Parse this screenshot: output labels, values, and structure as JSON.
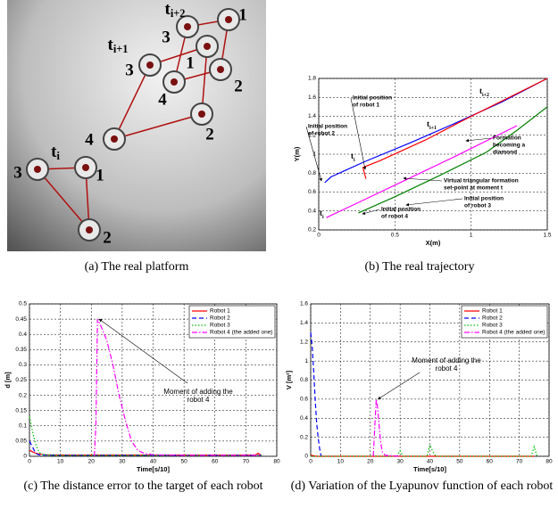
{
  "photo": {
    "labels": [
      {
        "text": "t",
        "sub": "i"
      },
      "1",
      "3",
      "2",
      "4",
      "2",
      "3",
      {
        "text": "t",
        "sub": "i+1"
      },
      "4",
      "1",
      "3",
      {
        "text": "t",
        "sub": "i+2"
      },
      "1",
      "2"
    ]
  },
  "captions": [
    "(a) The real platform",
    "(b) The real trajectory",
    "(c) The distance error to the target of each robot",
    "(d) Variation of the Lyapunov function of each robot"
  ],
  "chart_data": [
    {
      "type": "line",
      "xlabel": "X(m)",
      "ylabel": "Y(m)",
      "xlim": [
        0,
        1.5
      ],
      "ylim": [
        0.2,
        1.8
      ],
      "xticks": [
        0,
        0.5,
        1,
        1.5
      ],
      "yticks": [
        0.2,
        0.4,
        0.6,
        0.8,
        1,
        1.2,
        1.4,
        1.6,
        1.8
      ],
      "grid": true,
      "series": [
        {
          "color": "#0000ff",
          "linestyle": "solid",
          "x": [
            0.04,
            0.08,
            0.3,
            0.6,
            0.9,
            1.2,
            1.5
          ],
          "values": [
            0.7,
            0.76,
            0.92,
            1.12,
            1.33,
            1.55,
            1.8
          ]
        },
        {
          "color": "#ff0000",
          "linestyle": "solid",
          "x": [
            0.31,
            0.29,
            0.4,
            0.7,
            1.0,
            1.25,
            1.5
          ],
          "values": [
            0.74,
            0.86,
            0.93,
            1.15,
            1.4,
            1.6,
            1.8
          ]
        },
        {
          "color": "#ff00ff",
          "linestyle": "solid",
          "x": [
            0.05,
            0.3,
            0.6,
            0.9,
            1.2,
            1.3
          ],
          "values": [
            0.33,
            0.52,
            0.75,
            0.98,
            1.22,
            1.3
          ]
        },
        {
          "color": "#008000",
          "linestyle": "solid",
          "x": [
            0.26,
            0.5,
            0.8,
            1.1,
            1.3,
            1.5
          ],
          "values": [
            0.38,
            0.55,
            0.78,
            1.02,
            1.25,
            1.5
          ]
        }
      ],
      "annotations": [
        [
          "Initial position",
          "of robot 1"
        ],
        [
          "Initial position",
          "of robot 2"
        ],
        [
          "Formation",
          "becoming a",
          "diamond"
        ],
        [
          "Virtual triangular formation",
          "set-point at moment t"
        ],
        [
          "Initial position",
          "of robot 3"
        ],
        [
          "Initial position",
          "of robot 4"
        ]
      ],
      "time_labels": [
        {
          "text": "t",
          "sub": "i"
        },
        {
          "text": "t",
          "sub": "i"
        },
        {
          "text": "t",
          "sub": "i+1"
        },
        {
          "text": "t",
          "sub": "i+2"
        }
      ]
    },
    {
      "type": "line",
      "xlabel": "Time[s/10]",
      "ylabel": "d [m]",
      "xlim": [
        0,
        80
      ],
      "ylim": [
        0,
        0.5
      ],
      "xticks": [
        0,
        10,
        20,
        30,
        40,
        50,
        60,
        70,
        80
      ],
      "yticks": [
        0,
        0.05,
        0.1,
        0.15,
        0.2,
        0.25,
        0.3,
        0.35,
        0.4,
        0.45,
        0.5
      ],
      "grid": true,
      "legend": "upper right",
      "series": [
        {
          "name": "Robot 1",
          "color": "#ff0000",
          "linestyle": "solid",
          "x": [
            0,
            1,
            2,
            3,
            5,
            10,
            20,
            40,
            60,
            73,
            74,
            75
          ],
          "values": [
            0.02,
            0.015,
            0.01,
            0.008,
            0.005,
            0.004,
            0.004,
            0.004,
            0.004,
            0.004,
            0.01,
            0.003
          ]
        },
        {
          "name": "Robot 2",
          "color": "#0000ff",
          "linestyle": "dashed",
          "x": [
            0,
            1,
            2,
            3,
            5,
            10,
            40,
            75
          ],
          "values": [
            0.05,
            0.03,
            0.01,
            0.005,
            0.004,
            0.003,
            0.003,
            0.003
          ]
        },
        {
          "name": "Robot 3",
          "color": "#00c000",
          "linestyle": "dotted",
          "x": [
            0,
            1,
            2,
            3,
            4,
            6,
            10,
            40,
            75
          ],
          "values": [
            0.13,
            0.08,
            0.04,
            0.015,
            0.006,
            0.004,
            0.003,
            0.003,
            0.003
          ]
        },
        {
          "name": "Robot 4 (the added one)",
          "color": "#ff00ff",
          "linestyle": "dashdot",
          "x": [
            21,
            21.5,
            22,
            23,
            25,
            27,
            29,
            31,
            33,
            35,
            37,
            40,
            50,
            75
          ],
          "values": [
            0,
            0.1,
            0.45,
            0.43,
            0.38,
            0.3,
            0.2,
            0.12,
            0.05,
            0.02,
            0.01,
            0.005,
            0.003,
            0.003
          ]
        }
      ],
      "annotation": [
        "Moment of adding the",
        "robot 4"
      ]
    },
    {
      "type": "line",
      "xlabel": "Time[s/10]",
      "ylabel": "V [m²]",
      "xlim": [
        0,
        80
      ],
      "ylim": [
        0,
        1.6
      ],
      "xticks": [
        0,
        10,
        20,
        30,
        40,
        50,
        60,
        70,
        80
      ],
      "yticks": [
        0,
        0.2,
        0.4,
        0.6,
        0.8,
        1,
        1.2,
        1.4,
        1.6
      ],
      "grid": true,
      "legend": "upper right",
      "series": [
        {
          "name": "Robot 1",
          "color": "#ff0000",
          "linestyle": "solid",
          "x": [
            0,
            2,
            75
          ],
          "values": [
            0.01,
            0,
            0
          ]
        },
        {
          "name": "Robot 2",
          "color": "#0000ff",
          "linestyle": "dashed",
          "x": [
            0,
            0.5,
            1,
            1.5,
            2,
            2.5,
            3,
            3.5
          ],
          "values": [
            1.3,
            1.15,
            0.9,
            0.6,
            0.35,
            0.2,
            0.08,
            0
          ]
        },
        {
          "name": "Robot 3",
          "color": "#00c000",
          "linestyle": "dotted",
          "x": [
            0,
            20,
            21,
            22,
            29,
            30,
            31,
            39,
            40,
            41,
            42,
            74,
            75,
            76
          ],
          "values": [
            0,
            0,
            0.02,
            0,
            0,
            0.06,
            0,
            0,
            0.12,
            0.05,
            0,
            0,
            0.1,
            0
          ]
        },
        {
          "name": "Robot 4 (the added one)",
          "color": "#ff00ff",
          "linestyle": "dashdot",
          "x": [
            21,
            22,
            22.5,
            23,
            23.5,
            24,
            25,
            30
          ],
          "values": [
            0,
            0.6,
            0.5,
            0.3,
            0.15,
            0.05,
            0.01,
            0
          ]
        }
      ],
      "annotation": [
        "Moment of adding the",
        "robot 4"
      ]
    }
  ]
}
